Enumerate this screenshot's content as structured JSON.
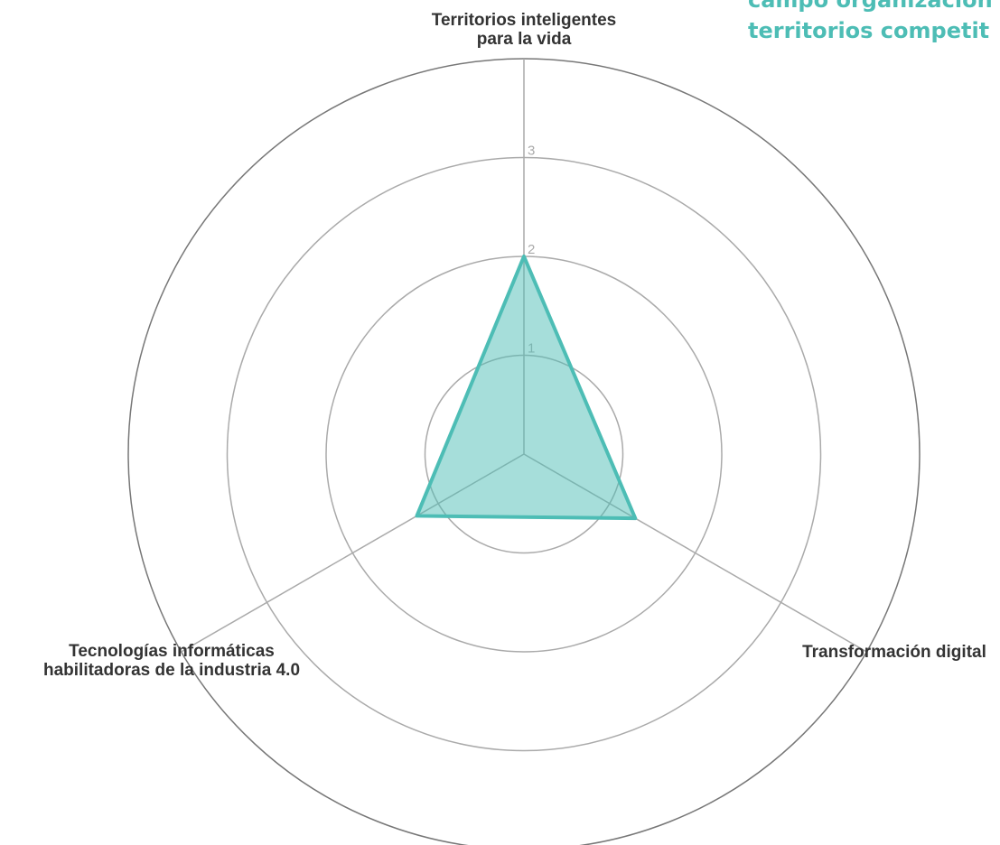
{
  "chart_data": {
    "type": "radar",
    "title": [
      "campo organización",
      "territorios competit"
    ],
    "categories": [
      [
        "Territorios inteligentes",
        "para la vida"
      ],
      [
        "Transformación digital"
      ],
      [
        "Tecnologías informáticas",
        "habilitadoras de la industria 4.0"
      ]
    ],
    "series": [
      {
        "color": "#4dbdb5",
        "values": [
          2,
          1.3,
          1.25
        ]
      }
    ],
    "rlim": [
      0,
      4
    ],
    "rticks": [
      1,
      2,
      3
    ]
  }
}
